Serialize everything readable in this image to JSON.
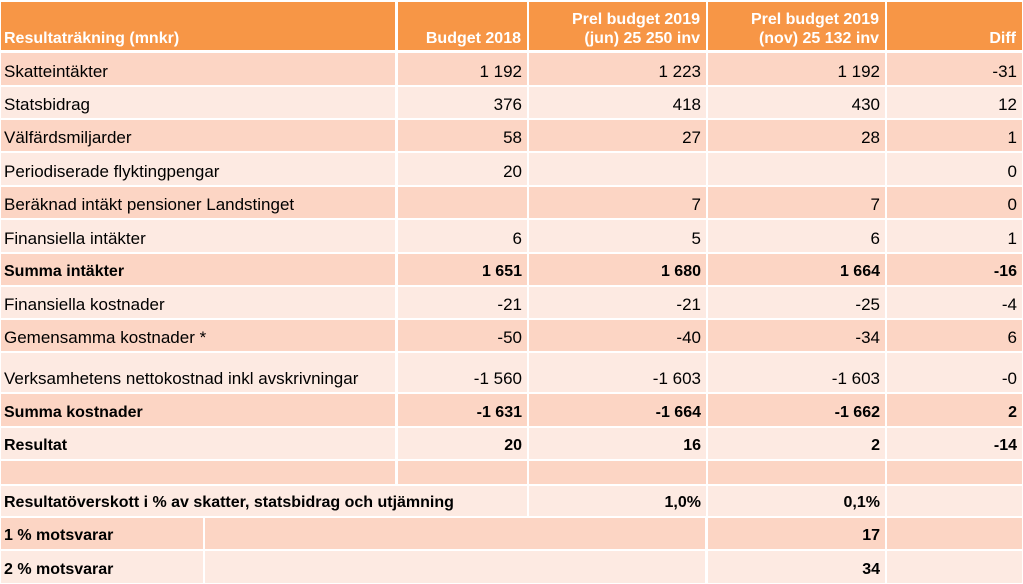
{
  "header": {
    "label": "Resultaträkning (mnkr)",
    "budget_2018": "Budget 2018",
    "prel_jun": [
      "Prel budget 2019",
      "(jun) 25 250 inv"
    ],
    "prel_nov": [
      "Prel budget 2019",
      "(nov) 25 132 inv"
    ],
    "diff": "Diff"
  },
  "rows": [
    {
      "label": "Skatteintäkter",
      "b2018": "1 192",
      "jun": "1 223",
      "nov": "1 192",
      "diff": "-31",
      "bold": false
    },
    {
      "label": "Statsbidrag",
      "b2018": "376",
      "jun": "418",
      "nov": "430",
      "diff": "12",
      "bold": false
    },
    {
      "label": "Välfärdsmiljarder",
      "b2018": "58",
      "jun": "27",
      "nov": "28",
      "diff": "1",
      "bold": false
    },
    {
      "label": "Periodiserade flyktingpengar",
      "b2018": "20",
      "jun": "",
      "nov": "",
      "diff": "0",
      "bold": false
    },
    {
      "label": "Beräknad intäkt pensioner Landstinget",
      "b2018": "",
      "jun": "7",
      "nov": "7",
      "diff": "0",
      "bold": false
    },
    {
      "label": "Finansiella intäkter",
      "b2018": "6",
      "jun": "5",
      "nov": "6",
      "diff": "1",
      "bold": false
    },
    {
      "label": "Summa intäkter",
      "b2018": "1 651",
      "jun": "1 680",
      "nov": "1 664",
      "diff": "-16",
      "bold": true
    },
    {
      "label": "Finansiella kostnader",
      "b2018": "-21",
      "jun": "-21",
      "nov": "-25",
      "diff": "-4",
      "bold": false
    },
    {
      "label": "Gemensamma kostnader *",
      "b2018": "-50",
      "jun": "-40",
      "nov": "-34",
      "diff": "6",
      "bold": false
    },
    {
      "label": "Verksamhetens nettokostnad inkl avskrivningar",
      "b2018": "-1 560",
      "jun": "-1 603",
      "nov": "-1 603",
      "diff": "-0",
      "bold": false
    },
    {
      "label": "Summa kostnader",
      "b2018": "-1 631",
      "jun": "-1 664",
      "nov": "-1 662",
      "diff": "2",
      "bold": true
    },
    {
      "label": "Resultat",
      "b2018": "20",
      "jun": "16",
      "nov": "2",
      "diff": "-14",
      "bold": true
    },
    {
      "label": "",
      "b2018": "",
      "jun": "",
      "nov": "",
      "diff": "",
      "bold": false
    }
  ],
  "summary": {
    "overskott_label": "Resultatöverskott i % av skatter, statsbidrag och utjämning",
    "overskott_jun": "1,0%",
    "overskott_nov": "0,1%",
    "one_pct_label": "1 % motsvarar",
    "one_pct_value": "17",
    "two_pct_label": "2 % motsvarar",
    "two_pct_value": "34"
  },
  "colors": {
    "header": "#f79646",
    "row_dark": "#fcd5c4",
    "row_light": "#fdeae2"
  }
}
